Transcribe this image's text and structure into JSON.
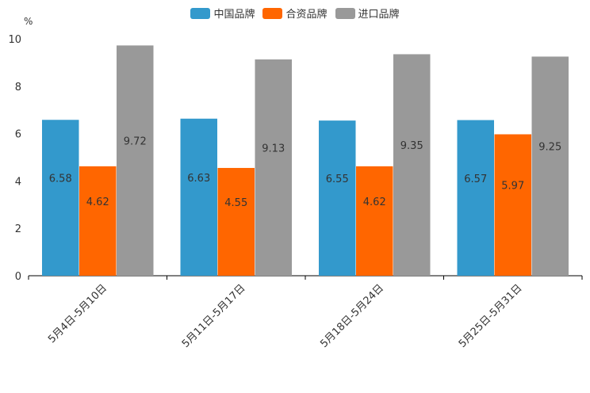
{
  "chart_data": {
    "type": "bar",
    "unit": "%",
    "categories": [
      "5月4日-5月10日",
      "5月11日-5月17日",
      "5月18日-5月24日",
      "5月25日-5月31日"
    ],
    "series": [
      {
        "name": "中国品牌",
        "color": "#3399cc",
        "values": [
          6.58,
          6.63,
          6.55,
          6.57
        ],
        "labels": [
          "6.58",
          "6.63",
          "6.55",
          "6.57"
        ]
      },
      {
        "name": "合资品牌",
        "color": "#ff6600",
        "values": [
          4.62,
          4.55,
          4.62,
          5.97
        ],
        "labels": [
          "4.62",
          "4.55",
          "4.62",
          "5.97"
        ]
      },
      {
        "name": "进口品牌",
        "color": "#999999",
        "values": [
          9.72,
          9.13,
          9.35,
          9.25
        ],
        "labels": [
          "9.72",
          "9.13",
          "9.35",
          "9.25"
        ]
      }
    ],
    "ylim": [
      0,
      10
    ],
    "yticks": [
      "0",
      "2",
      "4",
      "6",
      "8",
      "10"
    ],
    "legend_position": "top-center"
  }
}
